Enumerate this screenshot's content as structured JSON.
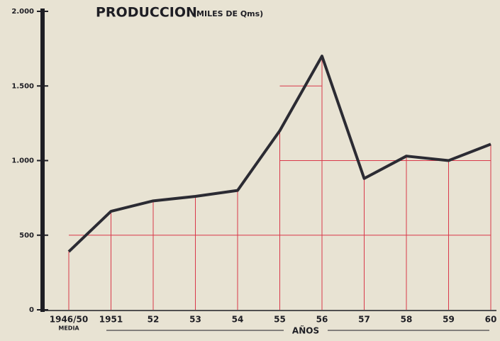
{
  "chart_data": {
    "type": "line",
    "title": "PRODUCCION",
    "subtitle": "(MILES DE Qms)",
    "x_label": "AÑOS",
    "x_note": "MEDIA",
    "categories": [
      "1946/50",
      "1951",
      "52",
      "53",
      "54",
      "55",
      "56",
      "57",
      "58",
      "59",
      "60"
    ],
    "series": [
      {
        "name": "Produccion",
        "color": "#2b2b33",
        "values": [
          390,
          660,
          730,
          760,
          800,
          1200,
          1700,
          880,
          1030,
          1000,
          1110
        ]
      }
    ],
    "drop_color": "#d9384a",
    "ylim": [
      0,
      2000
    ],
    "yticks": [
      0,
      500,
      {
        "value": 1000,
        "label": "1.000"
      },
      {
        "value": 1500,
        "label": "1.500"
      },
      {
        "value": 2000,
        "label": "2.000"
      }
    ],
    "grid": true
  }
}
